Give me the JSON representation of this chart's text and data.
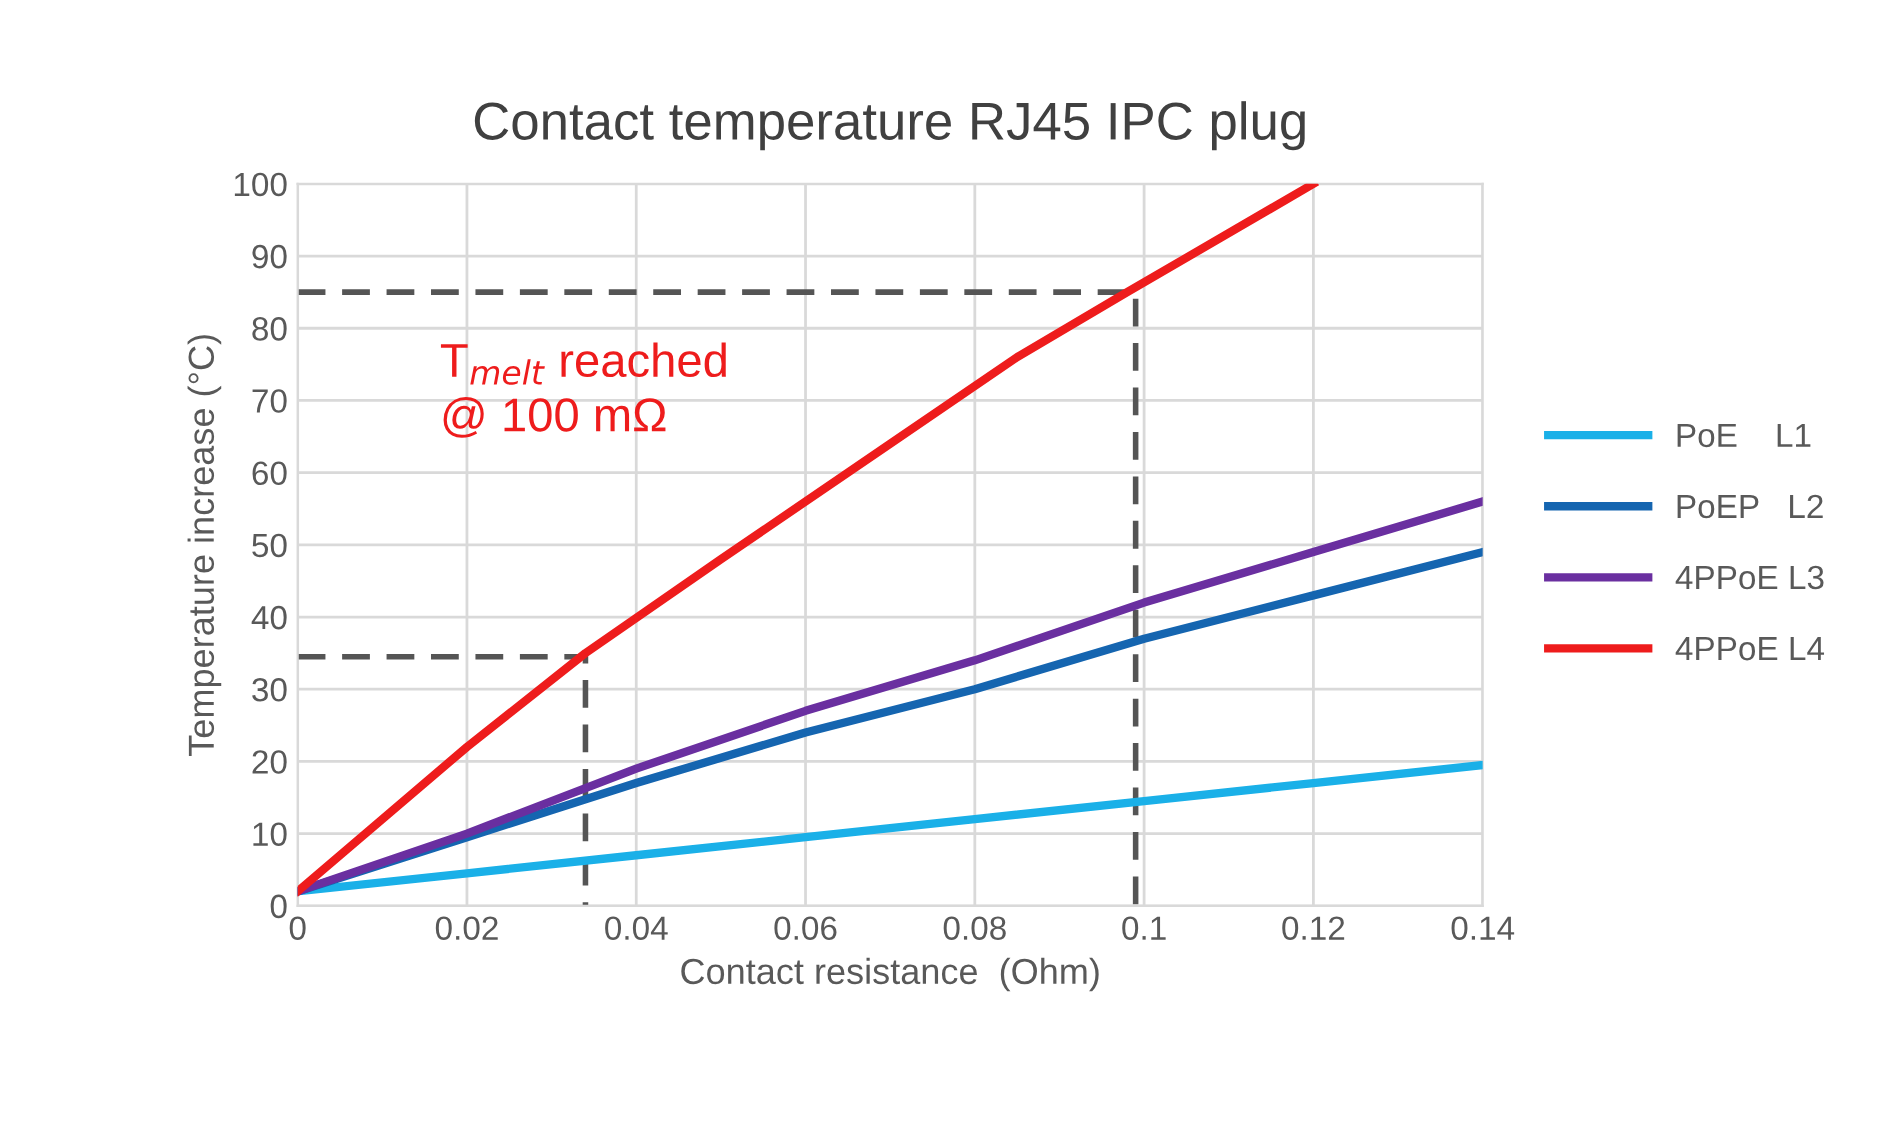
{
  "chart_data": {
    "type": "line",
    "title": "Contact temperature RJ45 IPC plug",
    "xlabel": "Contact resistance  (Ohm)",
    "ylabel": "Temperature increase (°C)",
    "xlim": [
      0,
      0.14
    ],
    "xticks": [
      0,
      0.02,
      0.04,
      0.06,
      0.08,
      0.1,
      0.12,
      0.14
    ],
    "ylim": [
      0,
      100
    ],
    "yticks": [
      0,
      10,
      20,
      30,
      40,
      50,
      60,
      70,
      80,
      90,
      100
    ],
    "x": [
      0,
      0.02,
      0.04,
      0.06,
      0.08,
      0.1,
      0.12,
      0.14
    ],
    "grid": true,
    "legend": "right",
    "marker": "none",
    "annotations": [
      "T$_{melt}$ reached\n@ 100 mΩ"
    ],
    "series": [
      {
        "name": "PoE    L1",
        "color": "#1ab0e8",
        "values": [
          2,
          4.5,
          7,
          9.5,
          12,
          14.5,
          17,
          19.5
        ]
      },
      {
        "name": "PoEP   L2",
        "color": "#1565b0",
        "values": [
          2,
          9.5,
          17,
          24,
          30,
          37,
          43,
          49
        ]
      },
      {
        "name": "4PPoE L3",
        "color": "#6a2fa0",
        "values": [
          2,
          10,
          19,
          27,
          34,
          42,
          49,
          56
        ]
      },
      {
        "name": "4PPoE L4",
        "color": "#ee1c1c",
        "x": [
          0,
          0.02,
          0.034,
          0.05,
          0.07,
          0.085,
          0.098,
          0.12
        ],
        "values": [
          2,
          22,
          35,
          48,
          64,
          76,
          85,
          100
        ]
      },
      {
        "type": "line",
        "color": "#555555",
        "line_style": "dashed",
        "x": [
          0,
          0.034,
          0.034
        ],
        "values": [
          34.5,
          34.5,
          0
        ]
      },
      {
        "type": "line",
        "color": "#555555",
        "line_style": "dashed",
        "x": [
          0,
          0.099,
          0.099
        ],
        "values": [
          85,
          85,
          0
        ]
      }
    ]
  }
}
